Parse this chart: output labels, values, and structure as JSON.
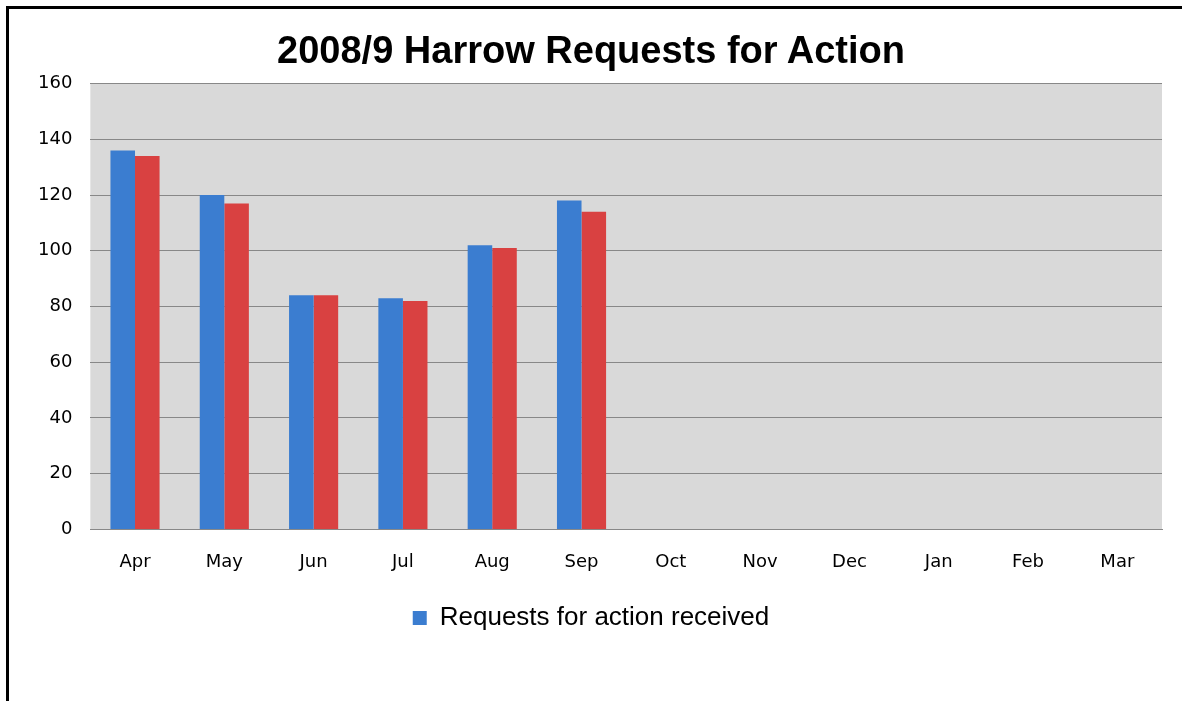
{
  "chart_data": {
    "type": "bar",
    "title": "2008/9 Harrow Requests for Action",
    "categories": [
      "Apr",
      "May",
      "Jun",
      "Jul",
      "Aug",
      "Sep",
      "Oct",
      "Nov",
      "Dec",
      "Jan",
      "Feb",
      "Mar"
    ],
    "series": [
      {
        "name": "Requests for action received",
        "color": "#3b7dd0",
        "values": [
          136,
          120,
          84,
          83,
          102,
          118,
          null,
          null,
          null,
          null,
          null,
          null
        ]
      },
      {
        "color": "#d94141",
        "values": [
          134,
          117,
          84,
          82,
          101,
          114,
          null,
          null,
          null,
          null,
          null,
          null
        ]
      }
    ],
    "ylim": [
      0,
      160
    ],
    "yticks": [
      0,
      20,
      40,
      60,
      80,
      100,
      120,
      140,
      160
    ],
    "grid": "y",
    "legend": "bottom"
  }
}
